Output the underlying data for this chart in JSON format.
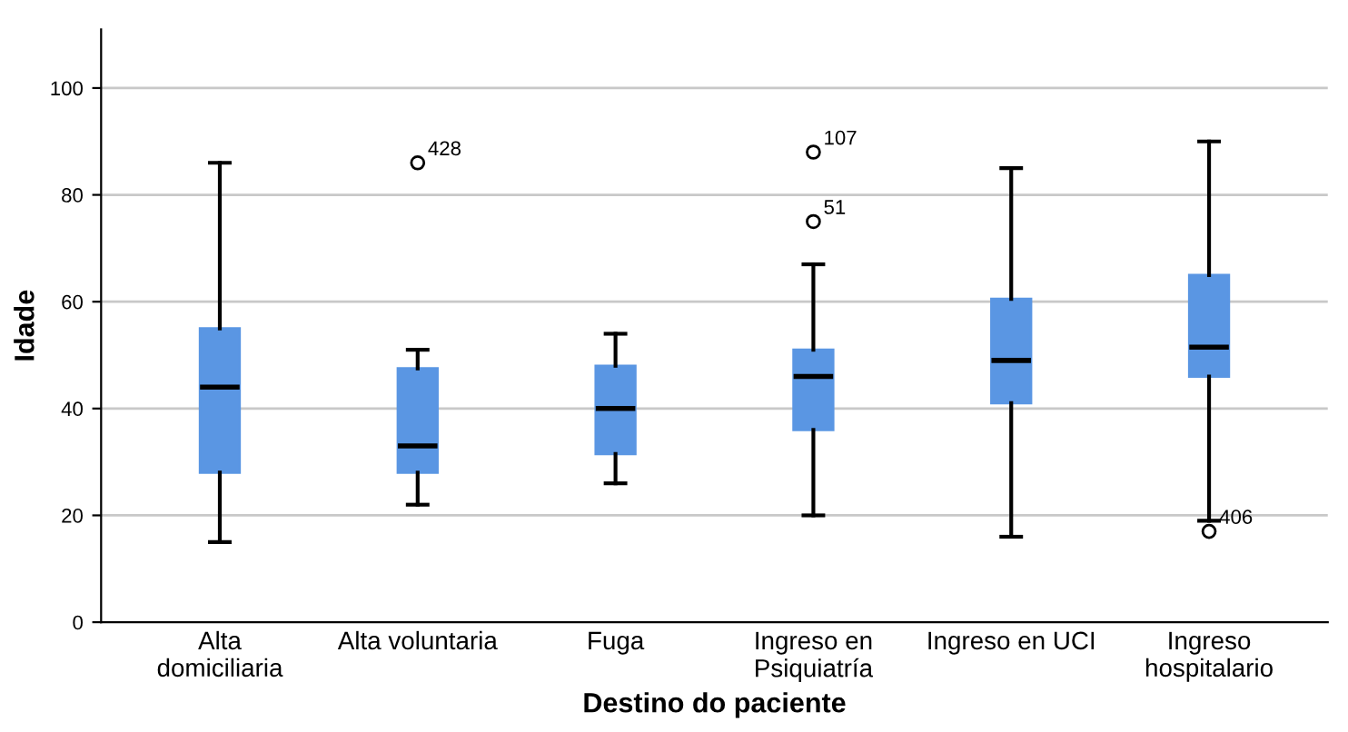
{
  "chart_data": {
    "type": "box",
    "xlabel": "Destino do paciente",
    "ylabel": "Idade",
    "categories": [
      "Alta\ndomiciliaria",
      "Alta voluntaria",
      "Fuga",
      "Ingreso en\nPsiquiatría",
      "Ingreso en UCI",
      "Ingreso\nhospitalario"
    ],
    "series": [
      {
        "color": "#5a96e3",
        "boxes": [
          {
            "low": 15,
            "q1": 28,
            "median": 44,
            "q3": 55,
            "high": 86
          },
          {
            "low": 22,
            "q1": 28,
            "median": 33,
            "q3": 47.5,
            "high": 51,
            "outliers": [
              86
            ]
          },
          {
            "low": 26,
            "q1": 31.5,
            "median": 40,
            "q3": 48,
            "high": 54
          },
          {
            "low": 20,
            "q1": 36,
            "median": 46,
            "q3": 51,
            "high": 67,
            "outliers": [
              88,
              75
            ]
          },
          {
            "low": 16,
            "q1": 41,
            "median": 49,
            "q3": 60.5,
            "high": 85
          },
          {
            "low": 19,
            "q1": 46,
            "median": 51.5,
            "q3": 65,
            "high": 90,
            "outliers": [
              17
            ]
          }
        ]
      }
    ],
    "annotations": [
      "428",
      "107",
      "51",
      "406"
    ],
    "ylim": [
      0,
      111
    ],
    "yticks": [
      0,
      20,
      40,
      60,
      80,
      100
    ],
    "grid": "y"
  }
}
